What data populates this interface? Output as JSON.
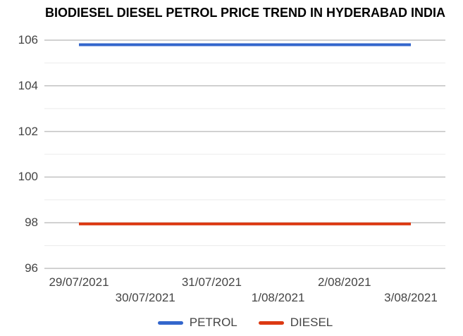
{
  "chart_data": {
    "type": "line",
    "title": "BIODIESEL DIESEL PETROL PRICE TREND IN HYDERABAD INDIA",
    "x": [
      "29/07/2021",
      "30/07/2021",
      "31/07/2021",
      "1/08/2021",
      "2/08/2021",
      "3/08/2021"
    ],
    "series": [
      {
        "name": "PETROL",
        "color": "#3366cc",
        "values": [
          105.8,
          105.8,
          105.8,
          105.8,
          105.8,
          105.8
        ]
      },
      {
        "name": "DIESEL",
        "color": "#dc3912",
        "values": [
          97.95,
          97.95,
          97.95,
          97.95,
          97.95,
          97.95
        ]
      }
    ],
    "xlabel": "",
    "ylabel": "",
    "ylim": [
      95.3,
      106.75
    ],
    "y_ticks": [
      96,
      98,
      100,
      102,
      104,
      106
    ],
    "y_minor_ticks": [
      97,
      99,
      101,
      103,
      105
    ],
    "grid": "horizontal",
    "legend_position": "bottom",
    "x_label_layout": "staggered"
  },
  "colors": {
    "petrol_line": "#3366cc",
    "diesel_line": "#dc3912",
    "major_gridline": "#c2c2c2",
    "minor_gridline": "#ebebeb",
    "axis_text": "#444444",
    "title_text": "#000000",
    "background": "#ffffff"
  }
}
